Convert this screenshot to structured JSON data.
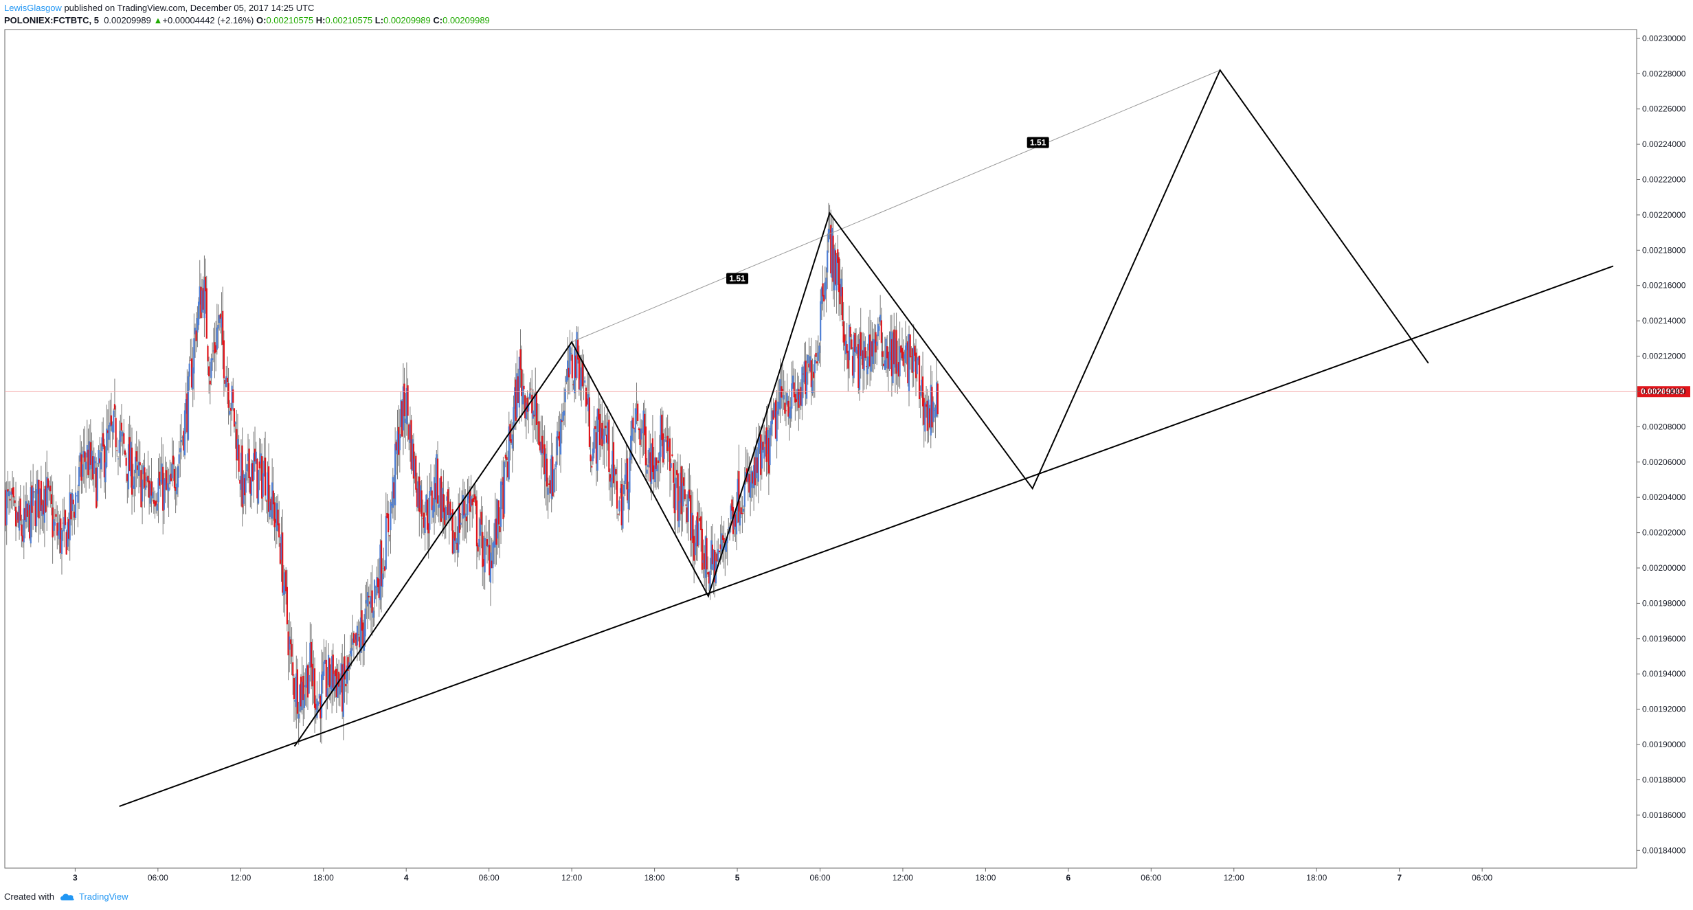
{
  "header": {
    "author": "LewisGlasgow",
    "published": "published on TradingView.com, December 05, 2017 14:25 UTC",
    "symbol": "POLONIEX:FCTBTC, 5",
    "last": "0.00209989",
    "arrow": "▲",
    "change": "+0.00004442 (+2.16%)",
    "o_label": "O:",
    "o_value": "0.00210575",
    "h_label": "H:",
    "h_value": "0.00210575",
    "l_label": "L:",
    "l_value": "0.00209989",
    "c_label": "C:",
    "c_value": "0.00209989"
  },
  "footer": {
    "created_with": "Created with",
    "brand": "TradingView",
    "logo_icon": "tradingview-cloud-icon"
  },
  "colors": {
    "up": "#4f7fd4",
    "down": "#e0151b",
    "wick": "#7a7a7a",
    "lastPriceLine": "#f4a5a5",
    "lastPriceBadge": "#e0151b",
    "pattern": "#000000",
    "projection": "#999999",
    "labelBg": "#000000"
  },
  "chart_data": {
    "type": "candlestick",
    "ylim": [
      0.00183,
      0.002305
    ],
    "y_ticks": [
      "0.00184000",
      "0.00186000",
      "0.00188000",
      "0.00190000",
      "0.00192000",
      "0.00194000",
      "0.00196000",
      "0.00198000",
      "0.00200000",
      "0.00202000",
      "0.00204000",
      "0.00206000",
      "0.00208000",
      "0.00210000",
      "0.00212000",
      "0.00214000",
      "0.00216000",
      "0.00218000",
      "0.00220000",
      "0.00222000",
      "0.00224000",
      "0.00226000",
      "0.00228000",
      "0.00230000"
    ],
    "x_ticks": [
      {
        "label": "3",
        "t": 0
      },
      {
        "label": "06:00",
        "t": 6
      },
      {
        "label": "12:00",
        "t": 12
      },
      {
        "label": "18:00",
        "t": 18
      },
      {
        "label": "4",
        "t": 24
      },
      {
        "label": "06:00",
        "t": 30
      },
      {
        "label": "12:00",
        "t": 36
      },
      {
        "label": "18:00",
        "t": 42
      },
      {
        "label": "5",
        "t": 48
      },
      {
        "label": "06:00",
        "t": 54
      },
      {
        "label": "12:00",
        "t": 60
      },
      {
        "label": "18:00",
        "t": 66
      },
      {
        "label": "6",
        "t": 72
      },
      {
        "label": "06:00",
        "t": 78
      },
      {
        "label": "12:00",
        "t": 84
      },
      {
        "label": "18:00",
        "t": 90
      },
      {
        "label": "7",
        "t": 96
      },
      {
        "label": "06:00",
        "t": 102
      }
    ],
    "t_range": [
      -5.1,
      113.2
    ],
    "last_price": 0.00209989,
    "last_price_label": "0.00209989",
    "price_path": [
      [
        -5.1,
        0.00204
      ],
      [
        -4.5,
        0.002028
      ],
      [
        -3.8,
        0.00202
      ],
      [
        -3.0,
        0.002035
      ],
      [
        -2.2,
        0.002045
      ],
      [
        -1.5,
        0.002022
      ],
      [
        -0.8,
        0.002015
      ],
      [
        0,
        0.00204
      ],
      [
        0.8,
        0.002065
      ],
      [
        1.5,
        0.002048
      ],
      [
        2.3,
        0.00207
      ],
      [
        3.0,
        0.002078
      ],
      [
        3.8,
        0.00206
      ],
      [
        4.5,
        0.00205
      ],
      [
        5.3,
        0.002045
      ],
      [
        6.0,
        0.002048
      ],
      [
        6.8,
        0.00204
      ],
      [
        7.5,
        0.002065
      ],
      [
        8.2,
        0.002095
      ],
      [
        8.8,
        0.00214
      ],
      [
        9.3,
        0.00216
      ],
      [
        9.8,
        0.00211
      ],
      [
        10.4,
        0.00214
      ],
      [
        11.0,
        0.00211
      ],
      [
        11.6,
        0.00208
      ],
      [
        12.2,
        0.00204
      ],
      [
        12.8,
        0.00206
      ],
      [
        13.3,
        0.00205
      ],
      [
        13.8,
        0.002055
      ],
      [
        14.3,
        0.002035
      ],
      [
        14.8,
        0.00202
      ],
      [
        15.3,
        0.001975
      ],
      [
        15.8,
        0.001935
      ],
      [
        16.4,
        0.00193
      ],
      [
        17.0,
        0.001945
      ],
      [
        17.6,
        0.001925
      ],
      [
        18.2,
        0.001935
      ],
      [
        18.8,
        0.00194
      ],
      [
        19.4,
        0.00193
      ],
      [
        20.0,
        0.001945
      ],
      [
        20.6,
        0.00196
      ],
      [
        21.2,
        0.001975
      ],
      [
        21.8,
        0.00199
      ],
      [
        22.4,
        0.00201
      ],
      [
        23.0,
        0.00204
      ],
      [
        23.5,
        0.00208
      ],
      [
        24.0,
        0.002095
      ],
      [
        24.5,
        0.00206
      ],
      [
        25.0,
        0.00204
      ],
      [
        25.6,
        0.00203
      ],
      [
        26.2,
        0.00205
      ],
      [
        26.8,
        0.00203
      ],
      [
        27.4,
        0.002015
      ],
      [
        28.0,
        0.00203
      ],
      [
        28.6,
        0.00204
      ],
      [
        29.2,
        0.00202
      ],
      [
        29.8,
        0.002005
      ],
      [
        30.4,
        0.002015
      ],
      [
        31.0,
        0.00204
      ],
      [
        31.6,
        0.002075
      ],
      [
        32.2,
        0.00211
      ],
      [
        32.8,
        0.002095
      ],
      [
        33.4,
        0.002085
      ],
      [
        34.0,
        0.00206
      ],
      [
        34.6,
        0.00205
      ],
      [
        35.2,
        0.002085
      ],
      [
        35.8,
        0.00211
      ],
      [
        36.4,
        0.00212
      ],
      [
        37.0,
        0.0021
      ],
      [
        37.5,
        0.002065
      ],
      [
        38.0,
        0.00208
      ],
      [
        38.5,
        0.002075
      ],
      [
        39.0,
        0.00205
      ],
      [
        39.5,
        0.002035
      ],
      [
        40.0,
        0.00205
      ],
      [
        40.6,
        0.002085
      ],
      [
        41.2,
        0.002075
      ],
      [
        41.8,
        0.00206
      ],
      [
        42.4,
        0.002075
      ],
      [
        43.0,
        0.00206
      ],
      [
        43.6,
        0.00204
      ],
      [
        44.2,
        0.00204
      ],
      [
        44.8,
        0.00202
      ],
      [
        45.4,
        0.00201
      ],
      [
        46.0,
        0.002
      ],
      [
        46.6,
        0.002005
      ],
      [
        47.2,
        0.00202
      ],
      [
        47.8,
        0.002035
      ],
      [
        48.4,
        0.002045
      ],
      [
        49.0,
        0.002045
      ],
      [
        49.6,
        0.00206
      ],
      [
        50.2,
        0.002065
      ],
      [
        50.8,
        0.002085
      ],
      [
        51.4,
        0.0021
      ],
      [
        52.0,
        0.002095
      ],
      [
        52.6,
        0.002098
      ],
      [
        53.2,
        0.00211
      ],
      [
        53.8,
        0.002125
      ],
      [
        54.2,
        0.00216
      ],
      [
        54.6,
        0.002185
      ],
      [
        55.0,
        0.002175
      ],
      [
        55.4,
        0.00216
      ],
      [
        55.8,
        0.00213
      ],
      [
        56.4,
        0.00212
      ],
      [
        57.0,
        0.002115
      ],
      [
        57.6,
        0.002125
      ],
      [
        58.2,
        0.00213
      ],
      [
        58.8,
        0.002125
      ],
      [
        59.4,
        0.00212
      ],
      [
        60.0,
        0.002115
      ],
      [
        60.6,
        0.00212
      ],
      [
        61.2,
        0.002105
      ],
      [
        61.8,
        0.002085
      ],
      [
        62.2,
        0.002095
      ],
      [
        62.6,
        0.002098
      ]
    ],
    "pattern_points": [
      [
        15.9,
        0.001899
      ],
      [
        36.0,
        0.002128
      ],
      [
        45.9,
        0.001984
      ],
      [
        54.7,
        0.002201
      ],
      [
        69.4,
        0.002045
      ],
      [
        83.0,
        0.002282
      ],
      [
        98.1,
        0.002116
      ]
    ],
    "support_line": [
      [
        3.2,
        0.001865
      ],
      [
        111.5,
        0.002171
      ]
    ],
    "projection_line": [
      [
        36.0,
        0.002128
      ],
      [
        83.0,
        0.002282
      ]
    ],
    "ratio_labels": [
      {
        "text": "1.51",
        "t": 48.0,
        "y": 0.002164
      },
      {
        "text": "1.51",
        "t": 69.8,
        "y": 0.002241
      }
    ]
  }
}
